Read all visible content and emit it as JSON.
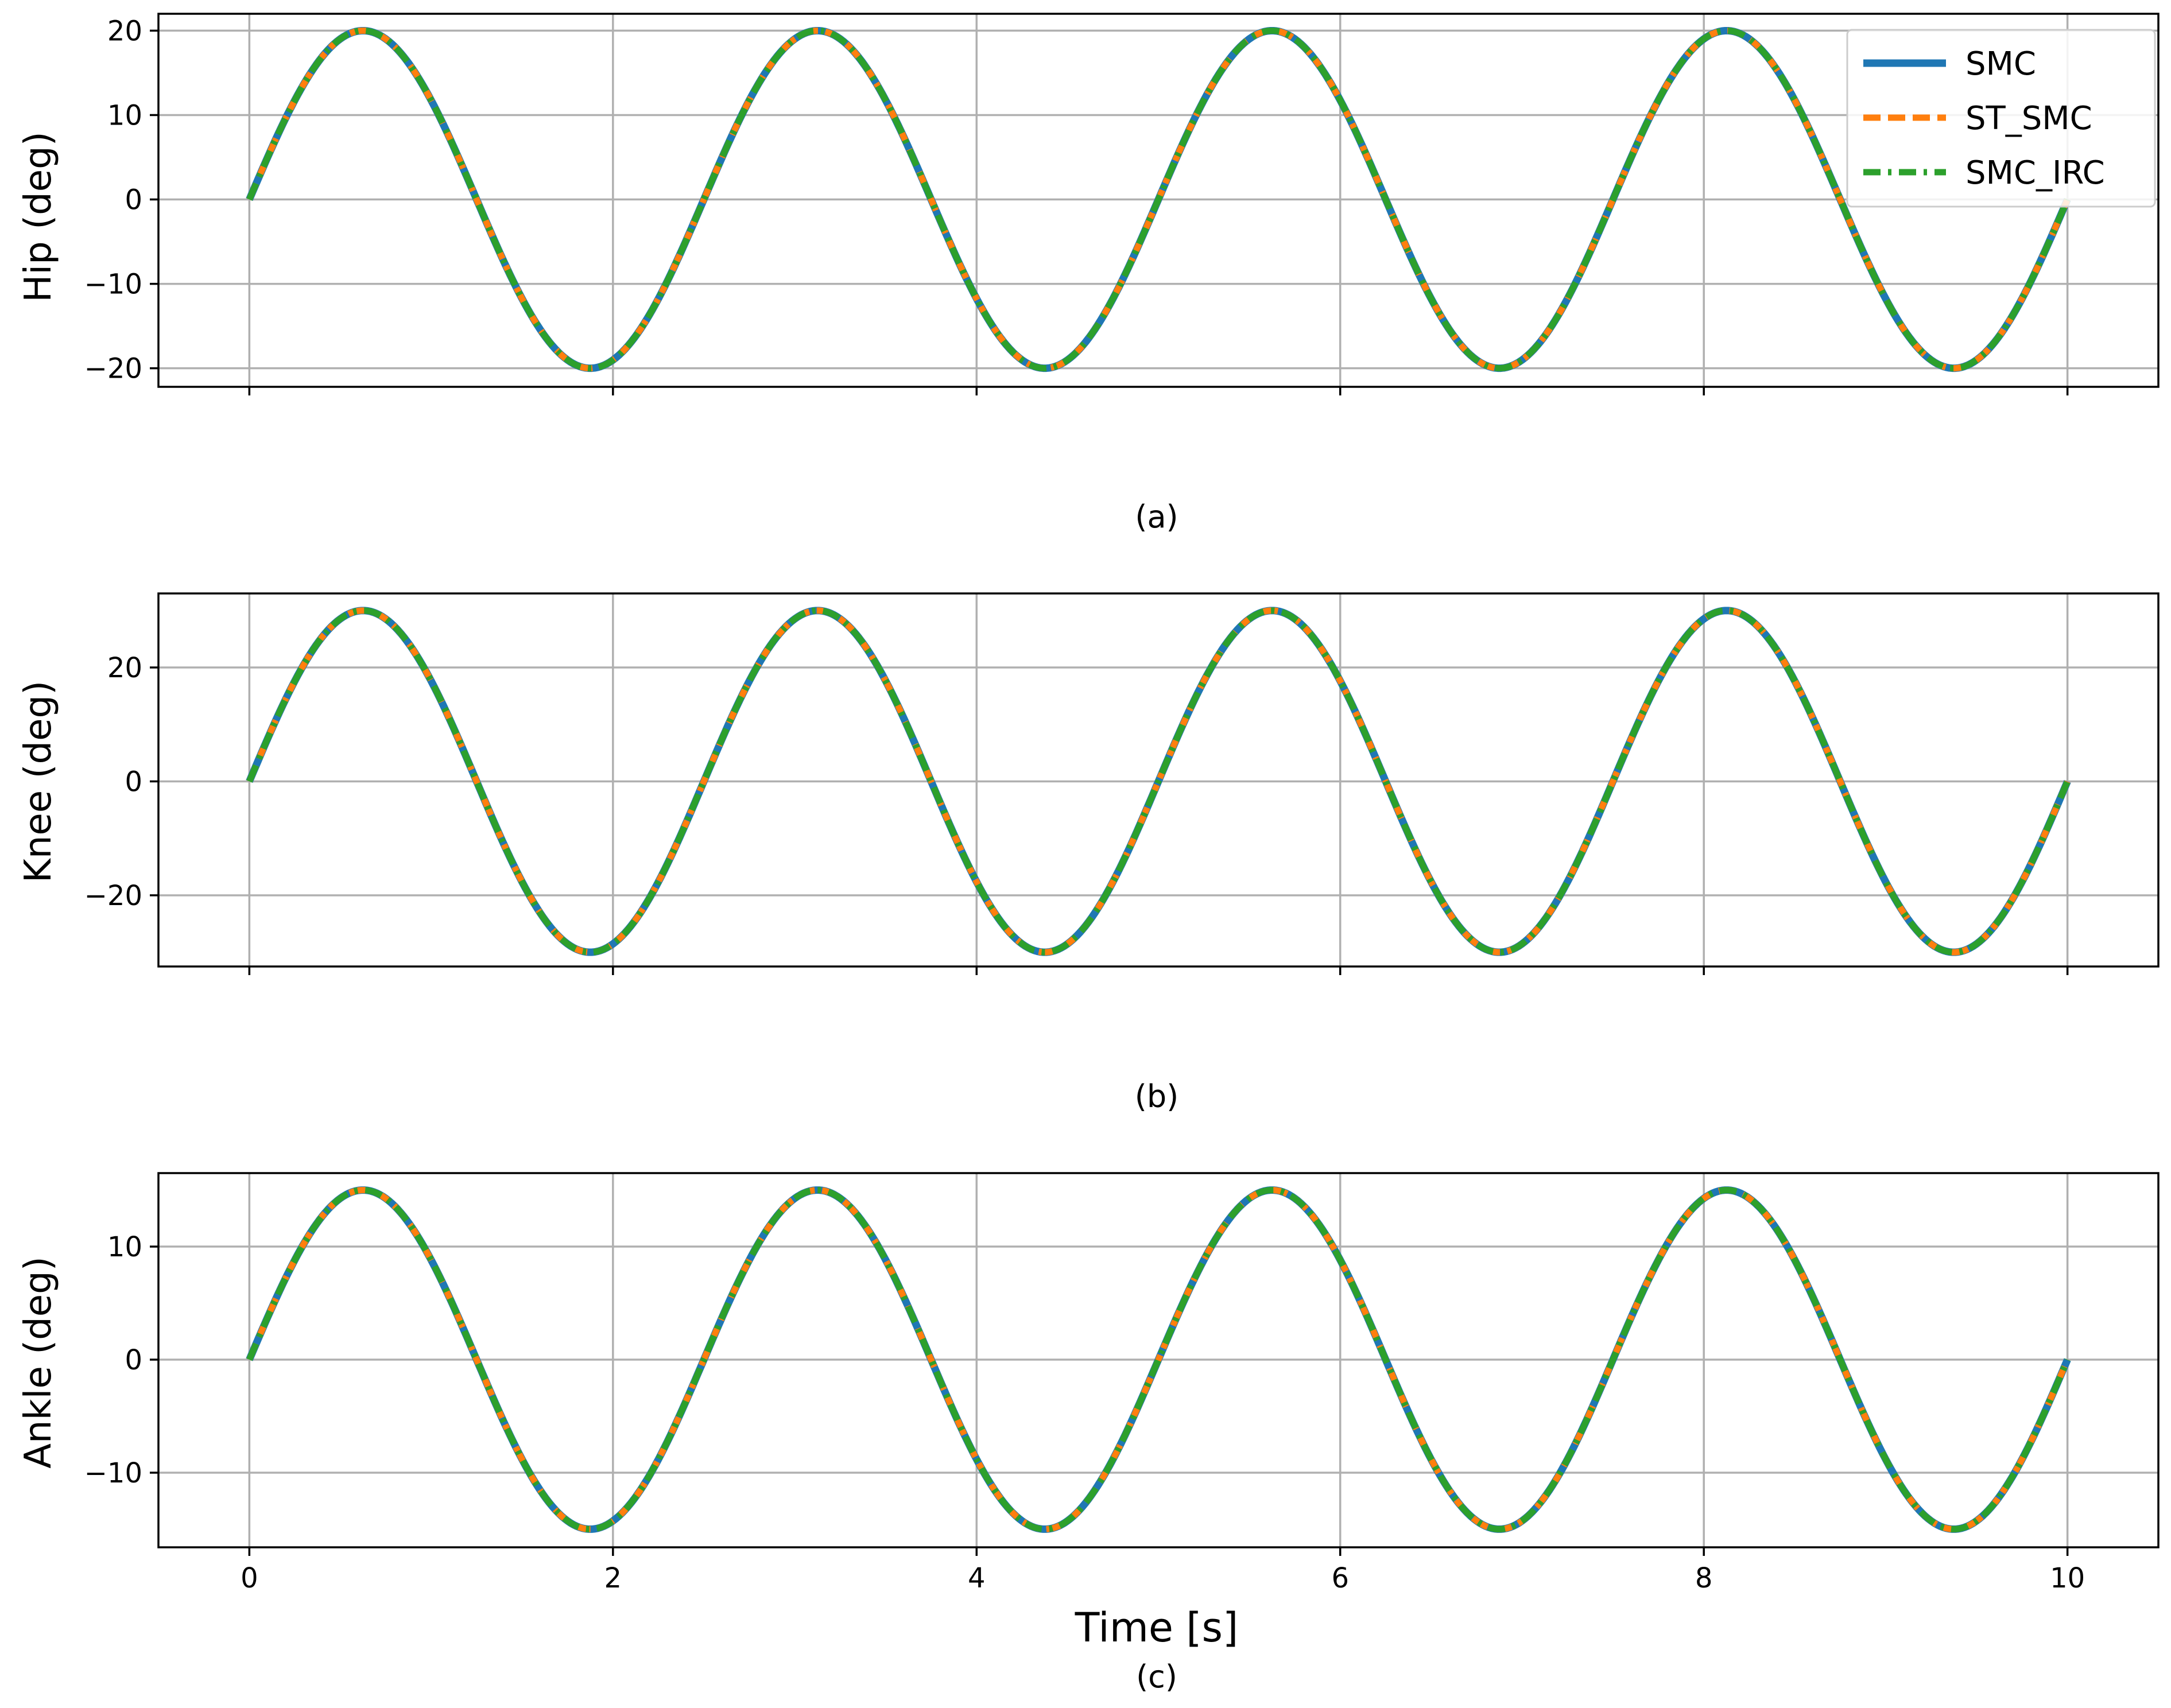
{
  "chart_data": [
    {
      "type": "line",
      "panel_label": "(a)",
      "ylabel": "Hip (deg)",
      "xlabel": "",
      "xlim": [
        -0.5,
        10.5
      ],
      "ylim": [
        -22.2,
        22.0
      ],
      "xticks": [
        0,
        2,
        4,
        6,
        8,
        10
      ],
      "show_xticklabels": false,
      "yticks": [
        -20,
        -10,
        0,
        10,
        20
      ],
      "yticklabels": [
        "−20",
        "−10",
        "0",
        "10",
        "20"
      ],
      "grid": true,
      "legend": "top-right",
      "curve": {
        "function": "amplitude * sin(2*pi*t/period)",
        "amplitude": 20,
        "period": 2.5,
        "t_range": [
          0,
          10
        ]
      },
      "series": [
        {
          "name": "SMC",
          "color": "#1f77b4",
          "style": "solid",
          "x": [
            0,
            0.625,
            1.25,
            1.875,
            2.5,
            3.125,
            3.75,
            4.375,
            5,
            5.625,
            6.25,
            6.875,
            7.5,
            8.125,
            8.75,
            9.375,
            10
          ],
          "values": [
            0,
            20,
            0,
            -20,
            0,
            20,
            0,
            -20,
            0,
            20,
            0,
            -20,
            0,
            20,
            0,
            -20,
            0
          ]
        },
        {
          "name": "ST_SMC",
          "color": "#ff7f0e",
          "style": "dashed",
          "x": [
            0,
            0.625,
            1.25,
            1.875,
            2.5,
            3.125,
            3.75,
            4.375,
            5,
            5.625,
            6.25,
            6.875,
            7.5,
            8.125,
            8.75,
            9.375,
            10
          ],
          "values": [
            0,
            20,
            0,
            -20,
            0,
            20,
            0,
            -20,
            0,
            20,
            0,
            -20,
            0,
            20,
            0,
            -20,
            0
          ]
        },
        {
          "name": "SMC_IRC",
          "color": "#2ca02c",
          "style": "dashdot",
          "x": [
            0,
            0.625,
            1.25,
            1.875,
            2.5,
            3.125,
            3.75,
            4.375,
            5,
            5.625,
            6.25,
            6.875,
            7.5,
            8.125,
            8.75,
            9.375,
            10
          ],
          "values": [
            0,
            20,
            0,
            -20,
            0,
            20,
            0,
            -20,
            0,
            20,
            0,
            -20,
            0,
            20,
            0,
            -20,
            0
          ]
        }
      ]
    },
    {
      "type": "line",
      "panel_label": "(b)",
      "ylabel": "Knee (deg)",
      "xlabel": "",
      "xlim": [
        -0.5,
        10.5
      ],
      "ylim": [
        -32.5,
        33.0
      ],
      "xticks": [
        0,
        2,
        4,
        6,
        8,
        10
      ],
      "show_xticklabels": false,
      "yticks": [
        -20,
        0,
        20
      ],
      "yticklabels": [
        "−20",
        "0",
        "20"
      ],
      "grid": true,
      "curve": {
        "function": "amplitude * sin(2*pi*t/period)",
        "amplitude": 30,
        "period": 2.5,
        "t_range": [
          0,
          10
        ]
      },
      "series": [
        {
          "name": "SMC",
          "color": "#1f77b4",
          "style": "solid",
          "x": [
            0,
            0.625,
            1.25,
            1.875,
            2.5,
            3.125,
            3.75,
            4.375,
            5,
            5.625,
            6.25,
            6.875,
            7.5,
            8.125,
            8.75,
            9.375,
            10
          ],
          "values": [
            0,
            30,
            0,
            -30,
            0,
            30,
            0,
            -30,
            0,
            30,
            0,
            -30,
            0,
            30,
            0,
            -30,
            0
          ]
        },
        {
          "name": "ST_SMC",
          "color": "#ff7f0e",
          "style": "dashed",
          "x": [
            0,
            0.625,
            1.25,
            1.875,
            2.5,
            3.125,
            3.75,
            4.375,
            5,
            5.625,
            6.25,
            6.875,
            7.5,
            8.125,
            8.75,
            9.375,
            10
          ],
          "values": [
            0,
            30,
            0,
            -30,
            0,
            30,
            0,
            -30,
            0,
            30,
            0,
            -30,
            0,
            30,
            0,
            -30,
            0
          ]
        },
        {
          "name": "SMC_IRC",
          "color": "#2ca02c",
          "style": "dashdot",
          "x": [
            0,
            0.625,
            1.25,
            1.875,
            2.5,
            3.125,
            3.75,
            4.375,
            5,
            5.625,
            6.25,
            6.875,
            7.5,
            8.125,
            8.75,
            9.375,
            10
          ],
          "values": [
            0,
            30,
            0,
            -30,
            0,
            30,
            0,
            -30,
            0,
            30,
            0,
            -30,
            0,
            30,
            0,
            -30,
            0
          ]
        }
      ]
    },
    {
      "type": "line",
      "panel_label": "(c)",
      "ylabel": "Ankle (deg)",
      "xlabel": "Time [s]",
      "xlim": [
        -0.5,
        10.5
      ],
      "ylim": [
        -16.6,
        16.5
      ],
      "xticks": [
        0,
        2,
        4,
        6,
        8,
        10
      ],
      "xticklabels": [
        "0",
        "2",
        "4",
        "6",
        "8",
        "10"
      ],
      "show_xticklabels": true,
      "yticks": [
        -10,
        0,
        10
      ],
      "yticklabels": [
        "−10",
        "0",
        "10"
      ],
      "grid": true,
      "curve": {
        "function": "amplitude * sin(2*pi*t/period)",
        "amplitude": 15,
        "period": 2.5,
        "t_range": [
          0,
          10
        ]
      },
      "series": [
        {
          "name": "SMC",
          "color": "#1f77b4",
          "style": "solid",
          "x": [
            0,
            0.625,
            1.25,
            1.875,
            2.5,
            3.125,
            3.75,
            4.375,
            5,
            5.625,
            6.25,
            6.875,
            7.5,
            8.125,
            8.75,
            9.375,
            10
          ],
          "values": [
            0,
            15,
            0,
            -15,
            0,
            15,
            0,
            -15,
            0,
            15,
            0,
            -15,
            0,
            15,
            0,
            -15,
            0
          ]
        },
        {
          "name": "ST_SMC",
          "color": "#ff7f0e",
          "style": "dashed",
          "x": [
            0,
            0.625,
            1.25,
            1.875,
            2.5,
            3.125,
            3.75,
            4.375,
            5,
            5.625,
            6.25,
            6.875,
            7.5,
            8.125,
            8.75,
            9.375,
            10
          ],
          "values": [
            0,
            15,
            0,
            -15,
            0,
            15,
            0,
            -15,
            0,
            15,
            0,
            -15,
            0,
            15,
            0,
            -15,
            0
          ]
        },
        {
          "name": "SMC_IRC",
          "color": "#2ca02c",
          "style": "dashdot",
          "x": [
            0,
            0.625,
            1.25,
            1.875,
            2.5,
            3.125,
            3.75,
            4.375,
            5,
            5.625,
            6.25,
            6.875,
            7.5,
            8.125,
            8.75,
            9.375,
            10
          ],
          "values": [
            0,
            15,
            0,
            -15,
            0,
            15,
            0,
            -15,
            0,
            15,
            0,
            -15,
            0,
            15,
            0,
            -15,
            0
          ]
        }
      ]
    }
  ]
}
